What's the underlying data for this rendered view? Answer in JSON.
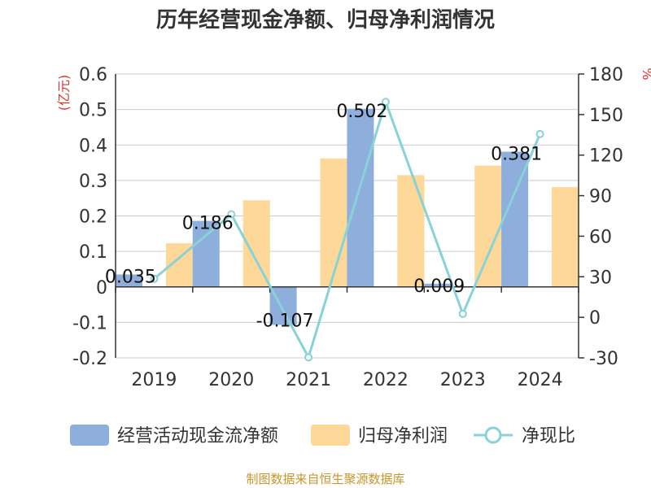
{
  "chart_data": {
    "type": "bar",
    "title": "历年经营现金净额、归母净利润情况",
    "categories": [
      "2019",
      "2020",
      "2021",
      "2022",
      "2023",
      "2024"
    ],
    "left_unit": "(亿元)",
    "right_unit": "%",
    "ylim": [
      -0.2,
      0.6
    ],
    "yticks": [
      "-0.2",
      "-0.1",
      "0",
      "0.1",
      "0.2",
      "0.3",
      "0.4",
      "0.5",
      "0.6"
    ],
    "y2lim": [
      -30,
      180
    ],
    "y2ticks": [
      "-30",
      "0",
      "30",
      "60",
      "90",
      "120",
      "150",
      "180"
    ],
    "series": [
      {
        "name": "经营活动现金流净额",
        "kind": "bar",
        "axis": "left",
        "color": "#8eaedb",
        "values": [
          0.035,
          0.186,
          -0.107,
          0.502,
          0.009,
          0.381
        ],
        "labels": [
          "0.035",
          "0.186",
          "-0.107",
          "0.502",
          "0.009",
          "0.381"
        ]
      },
      {
        "name": "归母净利润",
        "kind": "bar",
        "axis": "left",
        "color": "#fdd898",
        "values": [
          0.123,
          0.244,
          0.362,
          0.315,
          0.342,
          0.281
        ]
      },
      {
        "name": "净现比",
        "kind": "line",
        "axis": "right",
        "color": "#88d2d8",
        "values": [
          28.5,
          76.2,
          -29.6,
          159.4,
          2.6,
          135.6
        ]
      }
    ]
  },
  "source": "制图数据来自恒生聚源数据库"
}
